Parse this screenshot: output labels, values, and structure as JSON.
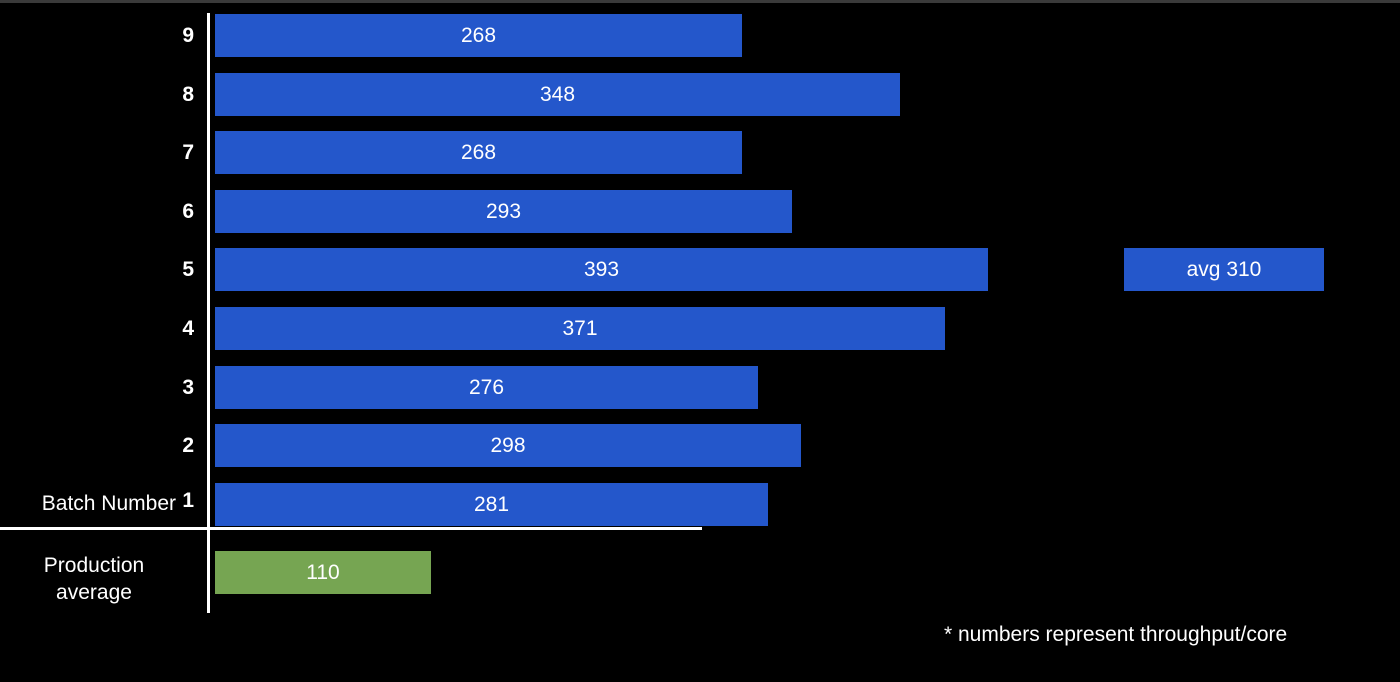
{
  "chart_data": {
    "type": "bar",
    "orientation": "horizontal",
    "title": "",
    "xlabel": "",
    "ylabel": "Batch Number",
    "categories": [
      "9",
      "8",
      "7",
      "6",
      "5",
      "4",
      "3",
      "2",
      "1"
    ],
    "values": [
      268,
      348,
      268,
      293,
      393,
      371,
      276,
      298,
      281
    ],
    "data_labels": [
      "268",
      "348",
      "268",
      "293",
      "393",
      "371",
      "276",
      "298",
      "281"
    ],
    "bar_color": "#2457CB",
    "baseline": {
      "label": "Production average",
      "label_lines": [
        "Production",
        "average"
      ],
      "value": 110,
      "value_label": "110",
      "color": "#76A552"
    },
    "average_annotation": {
      "text": "avg 310",
      "value": 310,
      "color": "#2457CB"
    },
    "footnote": "* numbers represent throughput/core",
    "grid": false
  }
}
